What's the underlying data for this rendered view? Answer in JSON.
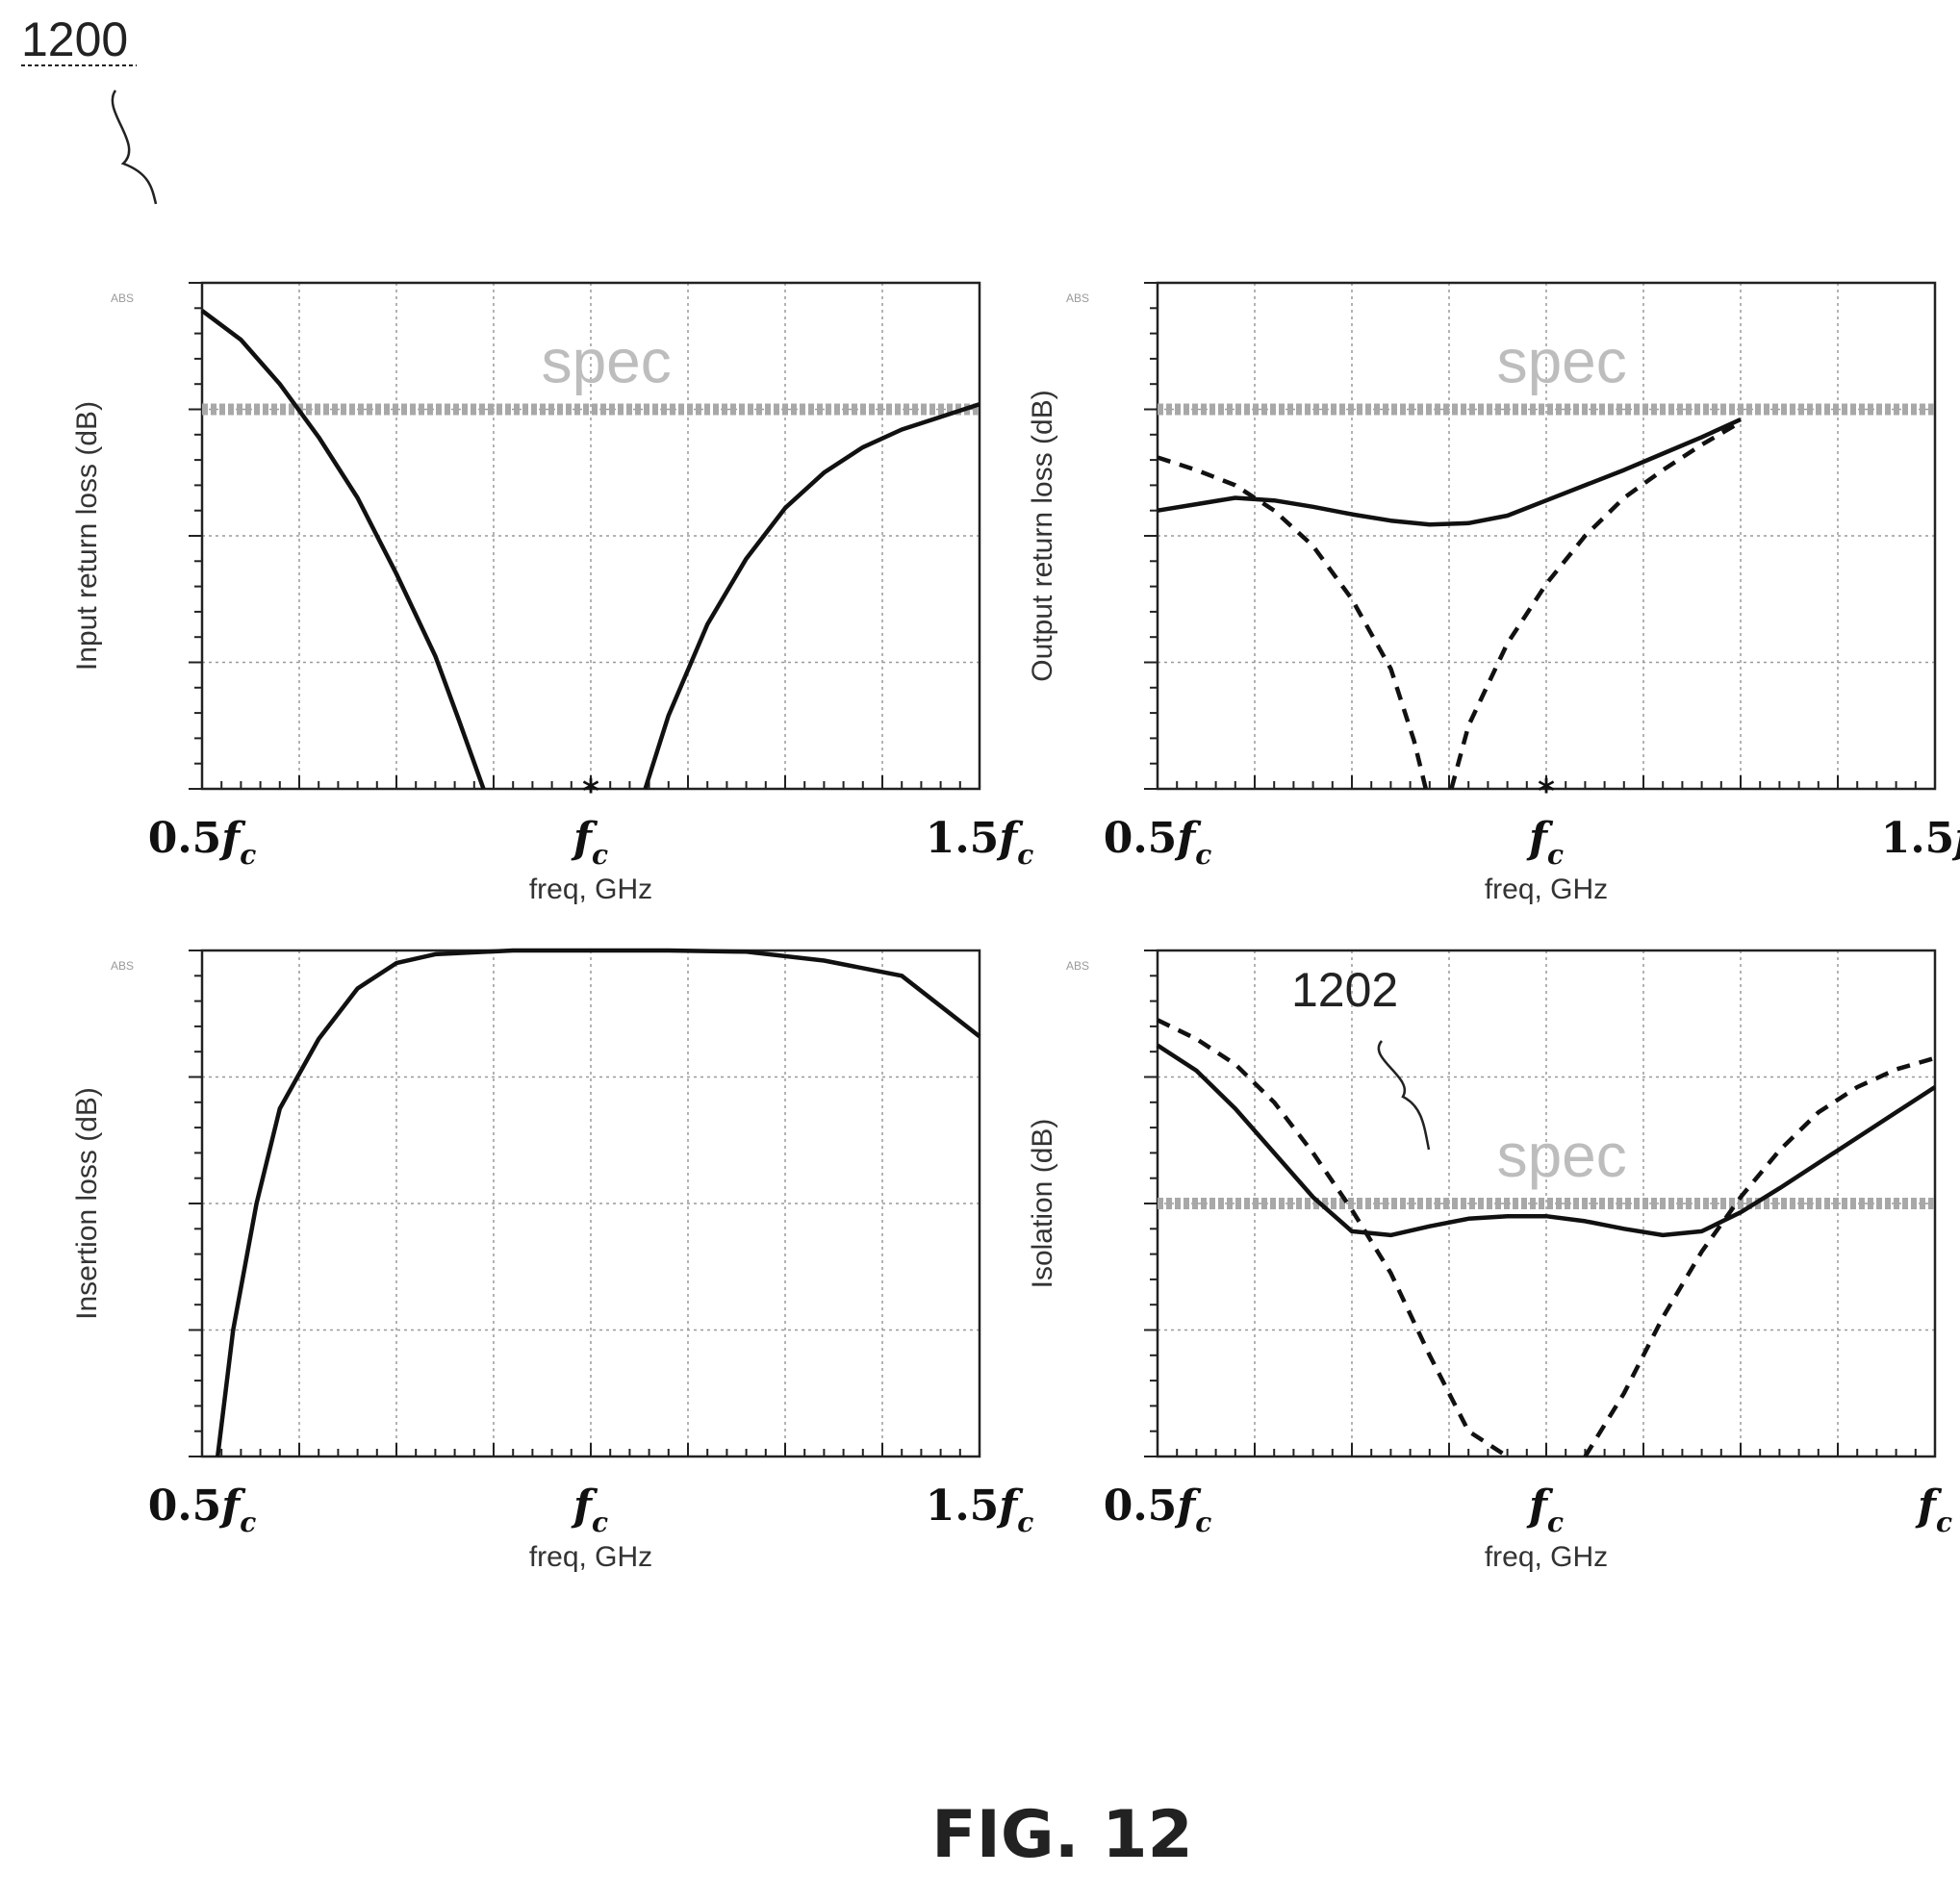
{
  "figure": {
    "ref_number": "1200",
    "caption": "FIG. 12",
    "callout": "1202"
  },
  "colors": {
    "trace": "#111111",
    "grid": "#9a9a9a",
    "spec_line": "#a8a8a8",
    "spec_text": "#bdbdbd"
  },
  "chart_data": [
    {
      "type": "line",
      "title": "",
      "xlabel": "freq, GHz",
      "ylabel": "Input return loss (dB)",
      "top_tick_label": "ABS",
      "x_tick_labels": [
        "0.5",
        "",
        "1.5"
      ],
      "x_tick_values": [
        0.5,
        1.0,
        1.5
      ],
      "xlim": [
        0.5,
        1.5
      ],
      "ylim": [
        0,
        4
      ],
      "grid": true,
      "spec": {
        "label": "spec",
        "y": 3.0
      },
      "marker": {
        "x": 1.0,
        "y": 0.0
      },
      "series": [
        {
          "style": "solid",
          "segments": [
            [
              [
                0.5,
                3.78
              ],
              [
                0.55,
                3.55
              ],
              [
                0.6,
                3.2
              ],
              [
                0.65,
                2.78
              ],
              [
                0.7,
                2.3
              ],
              [
                0.75,
                1.7
              ],
              [
                0.8,
                1.05
              ],
              [
                0.83,
                0.55
              ],
              [
                0.862,
                0.0
              ]
            ],
            [
              [
                1.07,
                0.0
              ],
              [
                1.1,
                0.58
              ],
              [
                1.15,
                1.3
              ],
              [
                1.2,
                1.82
              ],
              [
                1.25,
                2.22
              ],
              [
                1.3,
                2.5
              ],
              [
                1.35,
                2.7
              ],
              [
                1.4,
                2.84
              ],
              [
                1.45,
                2.94
              ],
              [
                1.5,
                3.04
              ]
            ]
          ]
        }
      ]
    },
    {
      "type": "line",
      "title": "",
      "xlabel": "freq, GHz",
      "ylabel": "Output return loss (dB)",
      "top_tick_label": "ABS",
      "x_tick_labels": [
        "0.5",
        "",
        "1.5"
      ],
      "x_tick_values": [
        0.5,
        1.0,
        1.5
      ],
      "xlim": [
        0.5,
        1.5
      ],
      "ylim": [
        0,
        4
      ],
      "grid": true,
      "spec": {
        "label": "spec",
        "y": 3.0
      },
      "marker": {
        "x": 1.0,
        "y": 0.0
      },
      "series": [
        {
          "style": "solid",
          "segments": [
            [
              [
                0.5,
                2.2
              ],
              [
                0.55,
                2.25
              ],
              [
                0.6,
                2.3
              ],
              [
                0.65,
                2.28
              ],
              [
                0.7,
                2.23
              ],
              [
                0.75,
                2.17
              ],
              [
                0.8,
                2.12
              ],
              [
                0.85,
                2.09
              ],
              [
                0.9,
                2.1
              ],
              [
                0.95,
                2.16
              ],
              [
                1.0,
                2.28
              ],
              [
                1.05,
                2.4
              ],
              [
                1.1,
                2.52
              ],
              [
                1.15,
                2.65
              ],
              [
                1.2,
                2.78
              ],
              [
                1.25,
                2.92
              ]
            ]
          ]
        },
        {
          "style": "dashed",
          "segments": [
            [
              [
                0.5,
                2.62
              ],
              [
                0.55,
                2.52
              ],
              [
                0.6,
                2.4
              ],
              [
                0.65,
                2.2
              ],
              [
                0.7,
                1.92
              ],
              [
                0.75,
                1.5
              ],
              [
                0.8,
                0.95
              ],
              [
                0.83,
                0.38
              ],
              [
                0.845,
                0.0
              ]
            ],
            [
              [
                0.878,
                0.0
              ],
              [
                0.9,
                0.5
              ],
              [
                0.95,
                1.15
              ],
              [
                1.0,
                1.62
              ],
              [
                1.05,
                2.0
              ],
              [
                1.1,
                2.3
              ],
              [
                1.15,
                2.52
              ],
              [
                1.2,
                2.72
              ],
              [
                1.25,
                2.9
              ]
            ]
          ]
        }
      ]
    },
    {
      "type": "line",
      "title": "",
      "xlabel": "freq, GHz",
      "ylabel": "Insertion loss (dB)",
      "top_tick_label": "ABS",
      "x_tick_labels": [
        "0.5",
        "",
        "1.5"
      ],
      "x_tick_values": [
        0.5,
        1.0,
        1.5
      ],
      "xlim": [
        0.5,
        1.5
      ],
      "ylim": [
        0,
        4
      ],
      "grid": true,
      "series": [
        {
          "style": "solid",
          "segments": [
            [
              [
                0.52,
                0.0
              ],
              [
                0.54,
                1.0
              ],
              [
                0.57,
                2.0
              ],
              [
                0.6,
                2.75
              ],
              [
                0.65,
                3.3
              ],
              [
                0.7,
                3.7
              ],
              [
                0.75,
                3.9
              ],
              [
                0.8,
                3.97
              ],
              [
                0.9,
                4.0
              ],
              [
                1.0,
                4.0
              ],
              [
                1.1,
                4.0
              ],
              [
                1.2,
                3.99
              ],
              [
                1.3,
                3.92
              ],
              [
                1.4,
                3.8
              ],
              [
                1.5,
                3.32
              ]
            ]
          ]
        }
      ]
    },
    {
      "type": "line",
      "title": "",
      "xlabel": "freq, GHz",
      "ylabel": "Isolation (dB)",
      "top_tick_label": "ABS",
      "x_tick_labels": [
        "0.5",
        "",
        ""
      ],
      "x_tick_values": [
        0.5,
        1.0,
        1.5
      ],
      "xlim": [
        0.5,
        1.5
      ],
      "ylim": [
        0,
        4
      ],
      "grid": true,
      "spec": {
        "label": "spec",
        "y": 2.0
      },
      "callout": "1202",
      "series": [
        {
          "style": "solid",
          "segments": [
            [
              [
                0.5,
                3.25
              ],
              [
                0.55,
                3.05
              ],
              [
                0.6,
                2.75
              ],
              [
                0.65,
                2.4
              ],
              [
                0.7,
                2.05
              ],
              [
                0.75,
                1.78
              ],
              [
                0.8,
                1.75
              ],
              [
                0.85,
                1.82
              ],
              [
                0.9,
                1.88
              ],
              [
                0.95,
                1.9
              ],
              [
                1.0,
                1.9
              ],
              [
                1.05,
                1.86
              ],
              [
                1.1,
                1.8
              ],
              [
                1.15,
                1.75
              ],
              [
                1.2,
                1.78
              ],
              [
                1.25,
                1.93
              ],
              [
                1.3,
                2.12
              ],
              [
                1.35,
                2.32
              ],
              [
                1.4,
                2.52
              ],
              [
                1.45,
                2.72
              ],
              [
                1.5,
                2.92
              ]
            ]
          ]
        },
        {
          "style": "dashed",
          "segments": [
            [
              [
                0.5,
                3.45
              ],
              [
                0.55,
                3.3
              ],
              [
                0.6,
                3.1
              ],
              [
                0.65,
                2.8
              ],
              [
                0.7,
                2.4
              ],
              [
                0.75,
                1.95
              ],
              [
                0.8,
                1.45
              ],
              [
                0.85,
                0.8
              ],
              [
                0.9,
                0.2
              ],
              [
                0.95,
                0.0
              ]
            ],
            [
              [
                1.05,
                0.0
              ],
              [
                1.1,
                0.5
              ],
              [
                1.15,
                1.1
              ],
              [
                1.2,
                1.62
              ],
              [
                1.25,
                2.05
              ],
              [
                1.3,
                2.42
              ],
              [
                1.35,
                2.72
              ],
              [
                1.4,
                2.92
              ],
              [
                1.45,
                3.06
              ],
              [
                1.5,
                3.15
              ]
            ]
          ]
        }
      ]
    }
  ]
}
